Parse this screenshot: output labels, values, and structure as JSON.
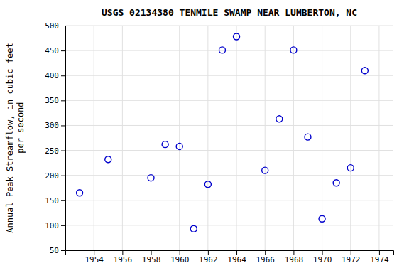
{
  "chart_data": {
    "type": "scatter",
    "title": "USGS 02134380 TENMILE SWAMP NEAR LUMBERTON, NC",
    "y_label": [
      "Annual Peak Streamflow, in cubic feet",
      "    per second"
    ],
    "x": [
      1953,
      1955,
      1958,
      1959,
      1960,
      1961,
      1962,
      1963,
      1964,
      1966,
      1967,
      1968,
      1969,
      1970,
      1971,
      1972,
      1973
    ],
    "values": [
      165,
      232,
      195,
      262,
      258,
      93,
      182,
      451,
      478,
      210,
      313,
      451,
      277,
      113,
      185,
      215,
      410
    ],
    "xlim": [
      1952,
      1975
    ],
    "ylim": [
      50,
      500
    ],
    "xticks": [
      1954,
      1956,
      1958,
      1960,
      1962,
      1964,
      1966,
      1968,
      1970,
      1972,
      1974
    ],
    "yticks": [
      50,
      100,
      150,
      200,
      250,
      300,
      350,
      400,
      450,
      500
    ],
    "color": "#0000cc",
    "marker": "circle",
    "grid": true
  }
}
